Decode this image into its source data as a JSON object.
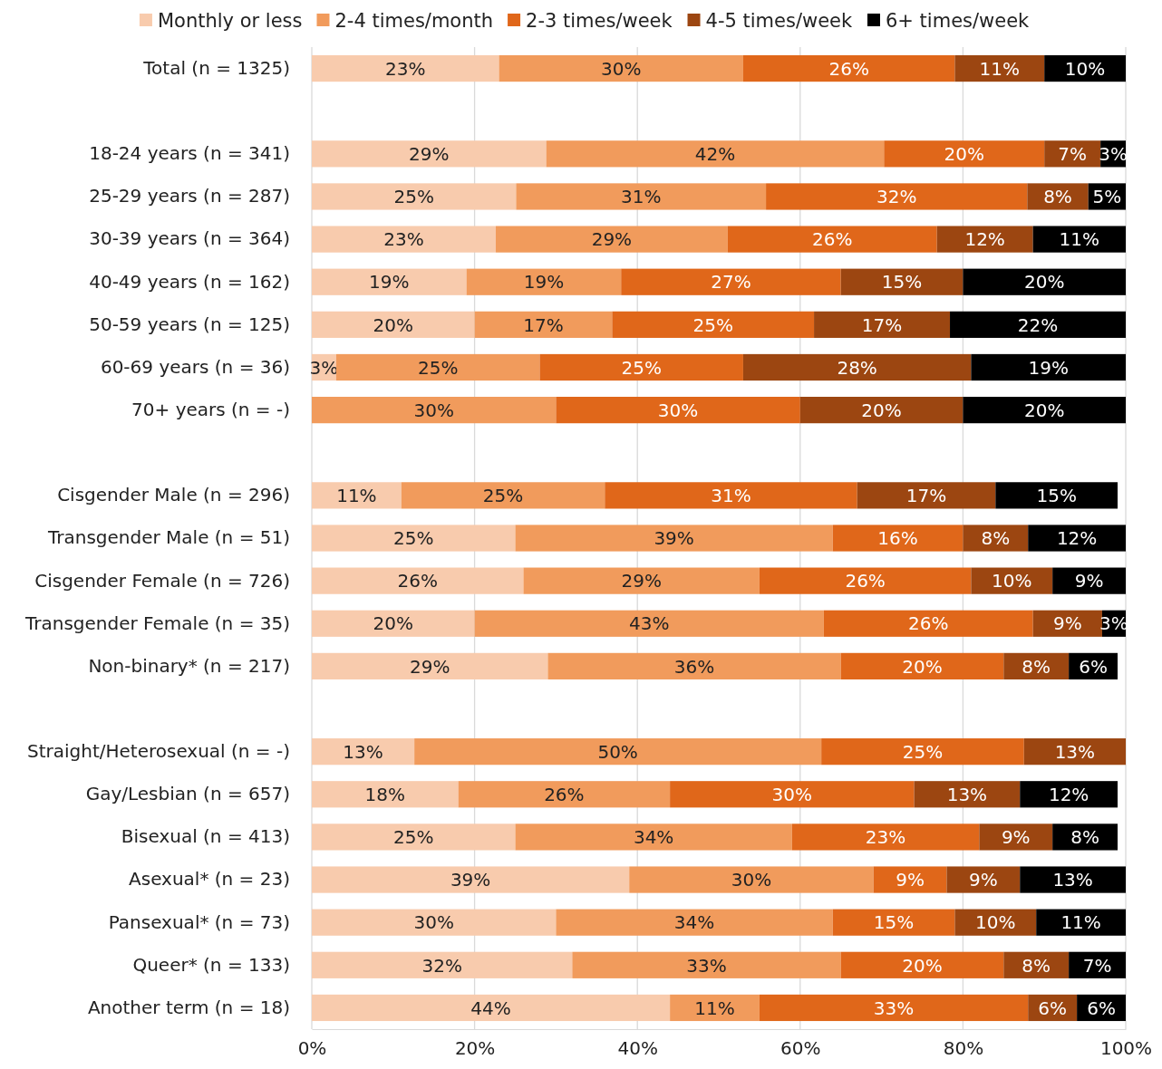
{
  "chart_data": {
    "type": "bar",
    "orientation": "horizontal",
    "stacked": true,
    "grid": "x",
    "legend": "top",
    "categories": [
      "Total (n = 1325)",
      null,
      "18-24 years (n = 341)",
      "25-29 years (n = 287)",
      "30-39 years (n = 364)",
      "40-49 years (n = 162)",
      "50-59 years (n = 125)",
      "60-69 years (n = 36)",
      "70+ years (n = -)",
      null,
      "Cisgender Male (n = 296)",
      "Transgender Male (n = 51)",
      "Cisgender Female (n = 726)",
      "Transgender Female (n = 35)",
      "Non-binary* (n = 217)",
      null,
      "Straight/Heterosexual (n = -)",
      "Gay/Lesbian (n = 657)",
      "Bisexual (n = 413)",
      "Asexual* (n = 23)",
      "Pansexual* (n = 73)",
      "Queer* (n = 133)",
      "Another term (n = 18)"
    ],
    "xlim": [
      0,
      100
    ],
    "xticks": [
      {
        "value": 0,
        "label": "0%"
      },
      {
        "value": 20,
        "label": "20%"
      },
      {
        "value": 40,
        "label": "40%"
      },
      {
        "value": 60,
        "label": "60%"
      },
      {
        "value": 80,
        "label": "80%"
      },
      {
        "value": 100,
        "label": "100%"
      }
    ],
    "series": [
      {
        "name": "Monthly or less",
        "color": "#f8cbad",
        "values": [
          23,
          null,
          28.8,
          25.1,
          22.6,
          19,
          20,
          3,
          null,
          null,
          11,
          25,
          26,
          20,
          29,
          null,
          12.6,
          18,
          25,
          39,
          30,
          32,
          44
        ],
        "value_labels": [
          "23%",
          null,
          "29%",
          "25%",
          "23%",
          "19%",
          "20%",
          "3%",
          null,
          null,
          "11%",
          "25%",
          "26%",
          "20%",
          "29%",
          null,
          "13%",
          "18%",
          "25%",
          "39%",
          "30%",
          "32%",
          "44%"
        ]
      },
      {
        "name": "2-4 times/month",
        "color": "#f19b5c",
        "values": [
          30,
          null,
          41.5,
          30.7,
          28.5,
          19,
          16.9,
          25,
          30,
          null,
          25,
          39,
          29,
          42.9,
          36,
          null,
          50,
          26,
          34,
          30,
          34,
          33,
          11
        ],
        "value_labels": [
          "30%",
          null,
          "42%",
          "31%",
          "29%",
          "19%",
          "17%",
          "25%",
          "30%",
          null,
          "25%",
          "39%",
          "29%",
          "43%",
          "36%",
          null,
          "50%",
          "26%",
          "34%",
          "30%",
          "34%",
          "33%",
          "11%"
        ]
      },
      {
        "name": "2-3 times/week",
        "color": "#e0671a",
        "values": [
          26,
          null,
          19.7,
          32.1,
          25.7,
          27,
          24.8,
          25,
          30,
          null,
          31,
          16,
          26,
          25.7,
          20,
          null,
          24.9,
          30,
          23,
          9,
          15,
          20,
          33
        ],
        "value_labels": [
          "26%",
          null,
          "20%",
          "32%",
          "26%",
          "27%",
          "25%",
          "25%",
          "30%",
          null,
          "31%",
          "16%",
          "26%",
          "26%",
          "20%",
          null,
          "25%",
          "30%",
          "23%",
          "9%",
          "15%",
          "20%",
          "33%"
        ]
      },
      {
        "name": "4-5 times/week",
        "color": "#9c4611",
        "values": [
          11,
          null,
          6.9,
          7.5,
          11.8,
          15,
          16.7,
          28,
          20,
          null,
          17,
          8,
          10,
          8.5,
          8,
          null,
          12.5,
          13,
          9,
          9,
          10,
          8,
          6
        ],
        "value_labels": [
          "11%",
          null,
          "7%",
          "8%",
          "12%",
          "15%",
          "17%",
          "28%",
          "20%",
          null,
          "17%",
          "8%",
          "10%",
          "9%",
          "8%",
          null,
          "13%",
          "13%",
          "9%",
          "9%",
          "10%",
          "8%",
          "6%"
        ]
      },
      {
        "name": "6+ times/week",
        "color": "#000000",
        "values": [
          10,
          null,
          3.1,
          4.6,
          11.4,
          20,
          21.6,
          19,
          20,
          null,
          15,
          12,
          9,
          2.9,
          6,
          null,
          null,
          12,
          8,
          13,
          11,
          7,
          6
        ],
        "value_labels": [
          "10%",
          null,
          "3%",
          "5%",
          "11%",
          "20%",
          "22%",
          "19%",
          "20%",
          null,
          "15%",
          "12%",
          "9%",
          "3%",
          "6%",
          null,
          null,
          "12%",
          "8%",
          "13%",
          "11%",
          "7%",
          "6%"
        ]
      }
    ]
  }
}
